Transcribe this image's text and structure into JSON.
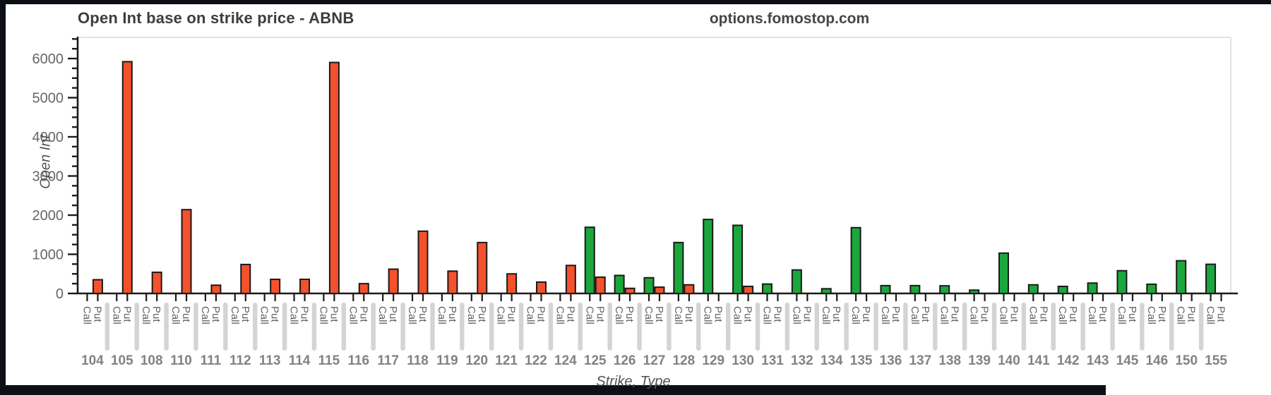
{
  "header": {
    "title": "Open Int base on strike price - ABNB",
    "watermark": "options.fomostop.com"
  },
  "chart_data": {
    "type": "bar",
    "title": "Open Int base on strike price - ABNB",
    "watermark": "options.fomostop.com",
    "xlabel": "Strike, Type",
    "ylabel": "Open Int",
    "ylim": [
      0,
      6540
    ],
    "y_major_ticks": [
      0,
      1000,
      2000,
      3000,
      4000,
      5000,
      6000
    ],
    "y_minor_step": 250,
    "grid": "off",
    "legend": "none",
    "bar_type_labels": [
      "Call",
      "Put"
    ],
    "categories": [
      104,
      105,
      108,
      110,
      111,
      112,
      113,
      114,
      115,
      116,
      117,
      118,
      119,
      120,
      121,
      122,
      124,
      125,
      126,
      127,
      128,
      129,
      130,
      131,
      132,
      134,
      135,
      136,
      137,
      138,
      139,
      140,
      141,
      142,
      143,
      145,
      146,
      150,
      155
    ],
    "series": [
      {
        "name": "Call",
        "color": "#1ba73c",
        "values": [
          0,
          0,
          0,
          0,
          0,
          0,
          0,
          0,
          0,
          0,
          0,
          0,
          0,
          0,
          0,
          0,
          0,
          1690,
          460,
          400,
          1300,
          1890,
          1740,
          240,
          600,
          120,
          1680,
          200,
          200,
          195,
          85,
          1030,
          220,
          180,
          265,
          580,
          235,
          835,
          745
        ]
      },
      {
        "name": "Put",
        "color": "#f4512c",
        "values": [
          350,
          5920,
          540,
          2140,
          210,
          740,
          360,
          360,
          5900,
          250,
          620,
          1590,
          570,
          1300,
          500,
          290,
          715,
          415,
          130,
          160,
          220,
          0,
          180,
          0,
          0,
          0,
          0,
          0,
          0,
          0,
          0,
          0,
          0,
          0,
          0,
          0,
          0,
          0,
          0
        ]
      }
    ],
    "colors": {
      "bar_outline": "#1a1a1a",
      "axis": "#1a1a1a",
      "plot_border": "#e2e2e2",
      "tick_label": "#666666",
      "strike_label": "#828282",
      "type_label": "#5f5f5f",
      "separator": "#d4d4d4"
    }
  }
}
